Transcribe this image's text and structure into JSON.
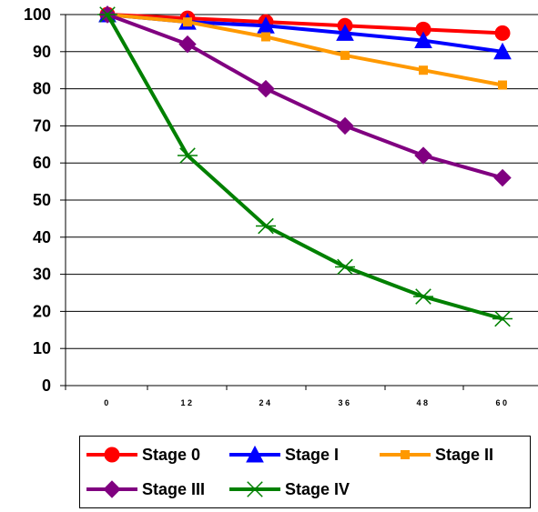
{
  "chart_data": {
    "type": "line",
    "title": "",
    "xlabel": "",
    "ylabel": "",
    "x": [
      "0",
      "12",
      "24",
      "36",
      "48",
      "60"
    ],
    "xlim": [
      0,
      60
    ],
    "ylim": [
      0,
      100
    ],
    "yticks": [
      0,
      10,
      20,
      30,
      40,
      50,
      60,
      70,
      80,
      90,
      100
    ],
    "grid": "horizontal",
    "legend_position": "bottom",
    "series": [
      {
        "name": "Stage 0",
        "values": [
          100,
          99,
          98,
          97,
          96,
          95
        ],
        "color": "#ff0000",
        "marker": "circle"
      },
      {
        "name": "Stage I",
        "values": [
          100,
          98,
          97,
          95,
          93,
          90
        ],
        "color": "#0000ff",
        "marker": "triangle"
      },
      {
        "name": "Stage II",
        "values": [
          100,
          98,
          94,
          89,
          85,
          81
        ],
        "color": "#ff9900",
        "marker": "square"
      },
      {
        "name": "Stage III",
        "values": [
          100,
          92,
          80,
          70,
          62,
          56
        ],
        "color": "#800080",
        "marker": "diamond"
      },
      {
        "name": "Stage IV",
        "values": [
          100,
          62,
          43,
          32,
          24,
          18
        ],
        "color": "#008000",
        "marker": "asterisk"
      }
    ]
  }
}
